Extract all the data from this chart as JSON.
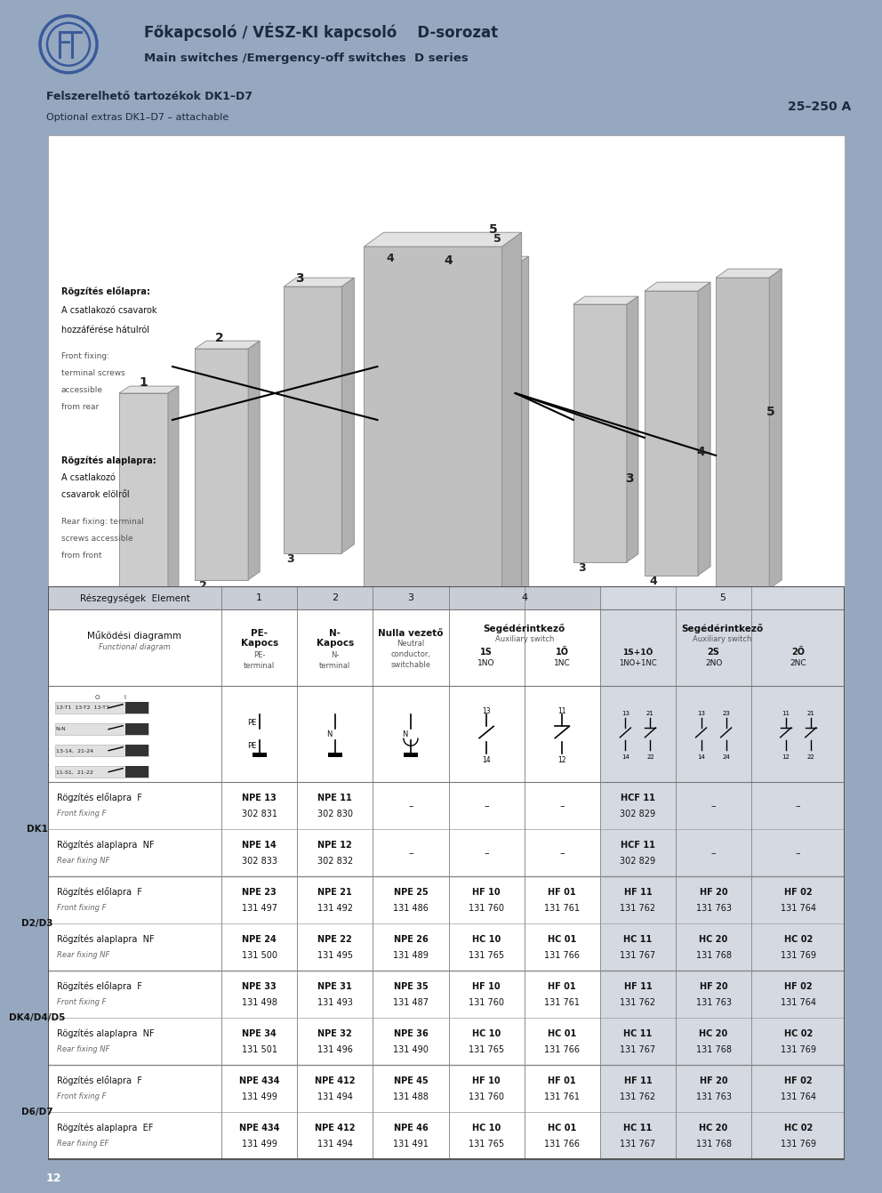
{
  "title_line1": "Főkapcsoló / VÉSZ-KI kapcsoló    D-sorozat",
  "title_line2": "Main switches /Emergency-off switches  D series",
  "subtitle_line1": "Felszerelhető tartozékok DK1–D7",
  "subtitle_line2": "Optional extras DK1–D7 – attachable",
  "subtitle_right": "25–250 A",
  "header_bg": "#8898b4",
  "table_header_bg": "#c8cdd6",
  "table_col5_bg": "#d4d9e2",
  "page_bg": "#96a8c0",
  "footer_page": "12",
  "logo_color": "#3a5a9a",
  "row_groups": [
    {
      "group": "DK1",
      "rows": [
        {
          "label_hu": "Rögzítés előlapra  F",
          "label_en": "Front fixing F",
          "col1": "NPE 13\n302 831",
          "col2": "NPE 11\n302 830",
          "col3": "–",
          "col4a": "–",
          "col4b": "–",
          "col5a": "HCF 11\n302 829",
          "col5b": "–",
          "col5c": "–"
        },
        {
          "label_hu": "Rögzítés alaplapra  NF",
          "label_en": "Rear fixing NF",
          "col1": "NPE 14\n302 833",
          "col2": "NPE 12\n302 832",
          "col3": "–",
          "col4a": "–",
          "col4b": "–",
          "col5a": "HCF 11\n302 829",
          "col5b": "–",
          "col5c": "–"
        }
      ]
    },
    {
      "group": "D2/D3",
      "rows": [
        {
          "label_hu": "Rögzítés előlapra  F",
          "label_en": "Front fixing F",
          "col1": "NPE 23\n131 497",
          "col2": "NPE 21\n131 492",
          "col3": "NPE 25\n131 486",
          "col4a": "HF 10\n131 760",
          "col4b": "HF 01\n131 761",
          "col5a": "HF 11\n131 762",
          "col5b": "HF 20\n131 763",
          "col5c": "HF 02\n131 764"
        },
        {
          "label_hu": "Rögzítés alaplapra  NF",
          "label_en": "Rear fixing NF",
          "col1": "NPE 24\n131 500",
          "col2": "NPE 22\n131 495",
          "col3": "NPE 26\n131 489",
          "col4a": "HC 10\n131 765",
          "col4b": "HC 01\n131 766",
          "col5a": "HC 11\n131 767",
          "col5b": "HC 20\n131 768",
          "col5c": "HC 02\n131 769"
        }
      ]
    },
    {
      "group": "DK4/D4/D5",
      "rows": [
        {
          "label_hu": "Rögzítés előlapra  F",
          "label_en": "Front fixing F",
          "col1": "NPE 33\n131 498",
          "col2": "NPE 31\n131 493",
          "col3": "NPE 35\n131 487",
          "col4a": "HF 10\n131 760",
          "col4b": "HF 01\n131 761",
          "col5a": "HF 11\n131 762",
          "col5b": "HF 20\n131 763",
          "col5c": "HF 02\n131 764"
        },
        {
          "label_hu": "Rögzítés alaplapra  NF",
          "label_en": "Rear fixing NF",
          "col1": "NPE 34\n131 501",
          "col2": "NPE 32\n131 496",
          "col3": "NPE 36\n131 490",
          "col4a": "HC 10\n131 765",
          "col4b": "HC 01\n131 766",
          "col5a": "HC 11\n131 767",
          "col5b": "HC 20\n131 768",
          "col5c": "HC 02\n131 769"
        }
      ]
    },
    {
      "group": "D6/D7",
      "rows": [
        {
          "label_hu": "Rögzítés előlapra  F",
          "label_en": "Front fixing F",
          "col1": "NPE 434\n131 499",
          "col2": "NPE 412\n131 494",
          "col3": "NPE 45\n131 488",
          "col4a": "HF 10\n131 760",
          "col4b": "HF 01\n131 761",
          "col5a": "HF 11\n131 762",
          "col5b": "HF 20\n131 763",
          "col5c": "HF 02\n131 764"
        },
        {
          "label_hu": "Rögzítés alaplapra  EF",
          "label_en": "Rear fixing EF",
          "col1": "NPE 434\n131 499",
          "col2": "NPE 412\n131 494",
          "col3": "NPE 46\n131 491",
          "col4a": "HC 10\n131 765",
          "col4b": "HC 01\n131 766",
          "col5a": "HC 11\n131 767",
          "col5b": "HC 20\n131 768",
          "col5c": "HC 02\n131 769"
        }
      ]
    }
  ]
}
